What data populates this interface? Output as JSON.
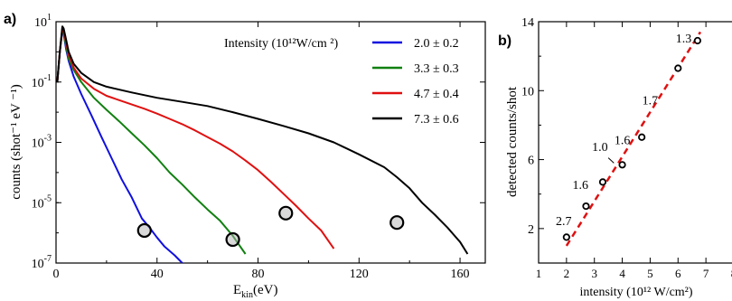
{
  "chart_data": [
    {
      "panel_label": "a)",
      "type": "line",
      "xlabel_main": "E",
      "xlabel_sub": "kin",
      "xlabel_unit": "(eV)",
      "ylabel": "counts (shot⁻¹ eV ⁻¹)",
      "xlim": [
        0,
        170
      ],
      "ylim_log10": [
        -7,
        1
      ],
      "y_scale": "log",
      "x_ticks": [
        "0",
        "40",
        "80",
        "120",
        "160"
      ],
      "y_tick_labels": [
        {
          "base": "10",
          "exp": "1"
        },
        {
          "base": "10",
          "exp": "-1"
        },
        {
          "base": "10",
          "exp": "-3"
        },
        {
          "base": "10",
          "exp": "-5"
        },
        {
          "base": "10",
          "exp": "-7"
        }
      ],
      "legend_title": "Intensity (10¹²W/cm ²)",
      "legend_position": "top-right",
      "series": [
        {
          "name": "2.0 ± 0.2",
          "color": "#1010e0",
          "x": [
            0.5,
            1.5,
            2.5,
            3,
            4,
            5,
            7,
            10,
            14,
            18,
            22,
            26,
            30,
            34,
            37,
            40,
            43,
            47,
            50
          ],
          "y": [
            0.1,
            1,
            5,
            4,
            1.2,
            0.5,
            0.15,
            0.04,
            0.008,
            0.0015,
            0.0003,
            6e-05,
            1.5e-05,
            3e-06,
            1.5e-06,
            7e-07,
            3.5e-07,
            1.8e-07,
            1e-07
          ]
        },
        {
          "name": "3.3 ± 0.3",
          "color": "#108010",
          "x": [
            0.5,
            1.5,
            2.5,
            3,
            4,
            5,
            7,
            10,
            15,
            20,
            25,
            30,
            35,
            40,
            45,
            50,
            55,
            60,
            65,
            70,
            75
          ],
          "y": [
            0.1,
            1,
            5.5,
            4.5,
            1.5,
            0.6,
            0.25,
            0.1,
            0.03,
            0.012,
            0.005,
            0.002,
            0.0008,
            0.0003,
            0.0001,
            4e-05,
            1.5e-05,
            6e-06,
            2.5e-06,
            8e-07,
            2e-07
          ]
        },
        {
          "name": "4.7 ± 0.4",
          "color": "#e01010",
          "x": [
            0.5,
            1.5,
            2.5,
            3,
            4,
            5,
            7,
            10,
            15,
            20,
            25,
            30,
            35,
            40,
            45,
            50,
            55,
            60,
            65,
            70,
            75,
            80,
            85,
            90,
            95,
            100,
            105,
            110
          ],
          "y": [
            0.1,
            1,
            6,
            5,
            2,
            0.8,
            0.3,
            0.13,
            0.06,
            0.035,
            0.025,
            0.018,
            0.013,
            0.009,
            0.006,
            0.004,
            0.0025,
            0.0015,
            0.0009,
            0.0005,
            0.00025,
            0.00012,
            5e-05,
            2e-05,
            8e-06,
            3e-06,
            1.2e-06,
            3e-07
          ]
        },
        {
          "name": "7.3 ± 0.6",
          "color": "#000000",
          "x": [
            0.5,
            1.5,
            2.5,
            3,
            4,
            5,
            7,
            10,
            15,
            20,
            30,
            40,
            50,
            60,
            70,
            80,
            90,
            100,
            110,
            120,
            130,
            135,
            140,
            145,
            150,
            155,
            160,
            163
          ],
          "y": [
            0.1,
            1,
            7,
            6,
            2.5,
            1,
            0.4,
            0.2,
            0.1,
            0.07,
            0.045,
            0.03,
            0.022,
            0.016,
            0.01,
            0.006,
            0.0035,
            0.002,
            0.001,
            0.0004,
            0.00015,
            7e-05,
            3e-05,
            1e-05,
            4e-06,
            1.5e-06,
            5e-07,
            2e-07
          ]
        }
      ],
      "circled_points": [
        {
          "x": 35,
          "y": 1.2e-06
        },
        {
          "x": 70,
          "y": 6e-07
        },
        {
          "x": 91,
          "y": 4.5e-06
        },
        {
          "x": 135,
          "y": 2.2e-06
        }
      ]
    },
    {
      "panel_label": "b)",
      "type": "scatter",
      "xlabel": "intensity (10¹² W/cm²)",
      "ylabel": "detected counts/shot",
      "xlim": [
        1,
        8
      ],
      "ylim": [
        0,
        14
      ],
      "x_ticks": [
        "1",
        "2",
        "3",
        "4",
        "5",
        "6",
        "7",
        "8"
      ],
      "y_ticks": [
        "2",
        "6",
        "10",
        "14"
      ],
      "points": [
        {
          "x": 2.0,
          "y": 1.5
        },
        {
          "x": 2.7,
          "y": 3.3
        },
        {
          "x": 3.3,
          "y": 4.7
        },
        {
          "x": 4.0,
          "y": 5.7
        },
        {
          "x": 4.7,
          "y": 7.3
        },
        {
          "x": 6.0,
          "y": 11.3
        },
        {
          "x": 6.7,
          "y": 12.9
        }
      ],
      "fit_color": "#e01010",
      "fit_line": {
        "x": [
          2.0,
          6.8
        ],
        "y": [
          1.0,
          13.4
        ]
      },
      "annotations": [
        {
          "text": "2.7",
          "x": 1.9,
          "y": 2.2
        },
        {
          "text": "1.6",
          "x": 2.5,
          "y": 4.3
        },
        {
          "text": "1.0",
          "x": 3.2,
          "y": 6.5
        },
        {
          "text": "1.6",
          "x": 4.0,
          "y": 6.9
        },
        {
          "text": "1.7",
          "x": 5.0,
          "y": 9.2
        },
        {
          "text": "1.3",
          "x": 6.2,
          "y": 12.8
        }
      ]
    }
  ]
}
